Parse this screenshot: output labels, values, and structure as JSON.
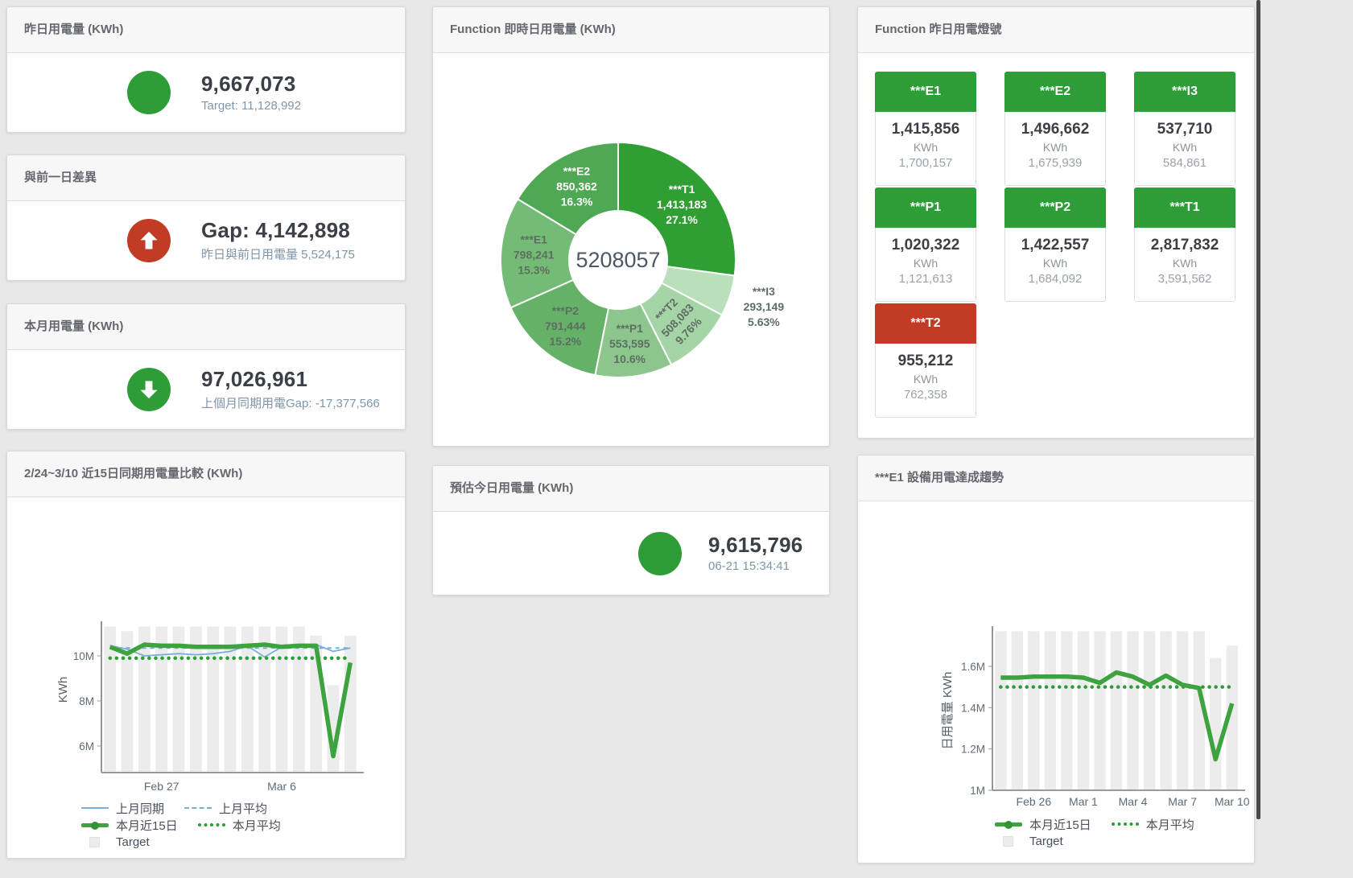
{
  "colors": {
    "green": "#2e9d38",
    "red": "#c13b25",
    "blue": "#7aadd8",
    "target_bar_gray": "#ececec",
    "value_text": "#3a4045",
    "subtitle_text": "#8095a8",
    "panel_title_text": "#64686e"
  },
  "panels": {
    "yesterday": {
      "title": "昨日用電量 (KWh)",
      "value": "9,667,073",
      "subtitle": "Target: 11,128,992",
      "status": "green"
    },
    "day_gap": {
      "title": "與前一日差異",
      "value": "Gap: 4,142,898",
      "subtitle": "昨日與前日用電量 5,524,175",
      "status": "red",
      "direction": "up"
    },
    "month": {
      "title": "本月用電量 (KWh)",
      "value": "97,026,961",
      "subtitle": "上個月同期用電Gap: -17,377,566",
      "status": "green",
      "direction": "down"
    },
    "donut": {
      "title": "Function 即時日用電量 (KWh)"
    },
    "estimate": {
      "title": "預估今日用電量 (KWh)",
      "value": "9,615,796",
      "subtitle": "06-21 15:34:41",
      "status": "green"
    },
    "lights": {
      "title": "Function 昨日用電燈號",
      "tiles": [
        {
          "name": "***E1",
          "value": "1,415,856",
          "unit": "KWh",
          "target": "1,700,157",
          "status": "green"
        },
        {
          "name": "***E2",
          "value": "1,496,662",
          "unit": "KWh",
          "target": "1,675,939",
          "status": "green"
        },
        {
          "name": "***I3",
          "value": "537,710",
          "unit": "KWh",
          "target": "584,861",
          "status": "green"
        },
        {
          "name": "***P1",
          "value": "1,020,322",
          "unit": "KWh",
          "target": "1,121,613",
          "status": "green"
        },
        {
          "name": "***P2",
          "value": "1,422,557",
          "unit": "KWh",
          "target": "1,684,092",
          "status": "green"
        },
        {
          "name": "***T1",
          "value": "2,817,832",
          "unit": "KWh",
          "target": "3,591,562",
          "status": "green"
        },
        {
          "name": "***T2",
          "value": "955,212",
          "unit": "KWh",
          "target": "762,358",
          "status": "red"
        }
      ]
    },
    "compare": {
      "title": "2/24~3/10 近15日同期用電量比較 (KWh)"
    },
    "trend": {
      "title": "***E1 設備用電達成趨勢"
    }
  },
  "chart_data": [
    {
      "id": "realtime-donut",
      "type": "pie",
      "title": "Function 即時日用電量 (KWh)",
      "center_label": "5208057",
      "unit": "KWh",
      "slices": [
        {
          "name": "***T1",
          "value": 1413183,
          "pct": "27.1%",
          "color": "#2f9e33",
          "text_color": "#ffffff"
        },
        {
          "name": "***I3",
          "value": 293149,
          "pct": "5.63%",
          "color": "#badfbb",
          "text_color": "#5e6e62",
          "outside": true
        },
        {
          "name": "***T2",
          "value": 508083,
          "pct": "9.76%",
          "color": "#a5d5a6",
          "text_color": "#5e6e62",
          "rotate": -46
        },
        {
          "name": "***P1",
          "value": 553595,
          "pct": "10.6%",
          "color": "#8cc68d",
          "text_color": "#5e6e62"
        },
        {
          "name": "***P2",
          "value": 791444,
          "pct": "15.2%",
          "color": "#66b168",
          "text_color": "#5e6e62"
        },
        {
          "name": "***E1",
          "value": 798241,
          "pct": "15.3%",
          "color": "#74bb76",
          "text_color": "#5e6e62"
        },
        {
          "name": "***E2",
          "value": 850362,
          "pct": "16.3%",
          "color": "#4fa854",
          "text_color": "#ffffff"
        }
      ]
    },
    {
      "id": "compare-15d",
      "type": "line+bar",
      "title": "2/24~3/10 近15日同期用電量比較 (KWh)",
      "ylabel": "KWh",
      "unit": "M = million KWh",
      "grid": false,
      "ylim": [
        4.82,
        11.32
      ],
      "yticks": [
        {
          "v": 6,
          "label": "6M"
        },
        {
          "v": 8,
          "label": "8M"
        },
        {
          "v": 10,
          "label": "10M"
        }
      ],
      "categories": [
        "Feb 24",
        "Feb 25",
        "Feb 26",
        "Feb 27",
        "Feb 28",
        "Mar 1",
        "Mar 2",
        "Mar 3",
        "Mar 4",
        "Mar 5",
        "Mar 6",
        "Mar 7",
        "Mar 8",
        "Mar 9",
        "Mar 10"
      ],
      "xticks": [
        {
          "i": 3,
          "label": "Feb 27"
        },
        {
          "i": 10,
          "label": "Mar 6"
        }
      ],
      "n": 15,
      "bars": {
        "name": "Target",
        "color": "#ececec",
        "values_M": [
          11.3,
          11.1,
          11.3,
          11.3,
          11.3,
          11.3,
          11.3,
          11.3,
          11.3,
          11.3,
          11.3,
          11.3,
          10.9,
          8.7,
          10.9
        ]
      },
      "series": [
        {
          "name": "上月同期",
          "color": "#7aadd8",
          "width": 1.8,
          "values_M": [
            10.45,
            10.3,
            10.0,
            10.05,
            10.1,
            10.05,
            10.1,
            10.2,
            10.45,
            9.95,
            10.4,
            10.5,
            10.5,
            10.2,
            10.35
          ]
        },
        {
          "name": "上月平均",
          "color": "#7aadd8",
          "width": 2,
          "dash": "5,5",
          "constant_M": 10.35
        },
        {
          "name": "本月平均",
          "color": "#2e9d38",
          "width": 4.5,
          "dash": "0.1,8",
          "cap": "round",
          "constant_M": 9.9
        },
        {
          "name": "本月近15日",
          "color": "#3da33f",
          "width": 5.5,
          "values_M": [
            10.4,
            10.1,
            10.5,
            10.45,
            10.45,
            10.4,
            10.4,
            10.4,
            10.45,
            10.5,
            10.4,
            10.45,
            10.45,
            5.55,
            9.7
          ]
        }
      ],
      "legend_rows": [
        [
          {
            "label": "上月同期",
            "swatch": "blue-line"
          },
          {
            "label": "上月平均",
            "swatch": "blue-dash"
          }
        ],
        [
          {
            "label": "本月近15日",
            "swatch": "green-thick"
          },
          {
            "label": "本月平均",
            "swatch": "green-dot"
          }
        ],
        [
          {
            "label": "Target",
            "swatch": "gray-square"
          }
        ]
      ]
    },
    {
      "id": "trend-e1",
      "type": "line+bar",
      "title": "***E1 設備用電達成趨勢",
      "ylabel": "日用電量 KWh",
      "unit": "M = million KWh",
      "grid": false,
      "ylim": [
        1.0,
        1.771
      ],
      "yticks": [
        {
          "v": 1,
          "label": "1M"
        },
        {
          "v": 1.2,
          "label": "1.2M"
        },
        {
          "v": 1.4,
          "label": "1.4M"
        },
        {
          "v": 1.6,
          "label": "1.6M"
        }
      ],
      "categories": [
        "Feb 24",
        "Feb 25",
        "Feb 26",
        "Feb 27",
        "Feb 28",
        "Mar 1",
        "Mar 2",
        "Mar 3",
        "Mar 4",
        "Mar 5",
        "Mar 6",
        "Mar 7",
        "Mar 8",
        "Mar 9",
        "Mar 10"
      ],
      "xticks": [
        {
          "i": 2,
          "label": "Feb 26"
        },
        {
          "i": 5,
          "label": "Mar 1"
        },
        {
          "i": 8,
          "label": "Mar 4"
        },
        {
          "i": 11,
          "label": "Mar 7"
        },
        {
          "i": 14,
          "label": "Mar 10"
        }
      ],
      "n": 15,
      "bars": {
        "name": "Target",
        "color": "#ececec",
        "values_M": [
          1.77,
          1.77,
          1.77,
          1.77,
          1.77,
          1.77,
          1.77,
          1.77,
          1.77,
          1.77,
          1.77,
          1.77,
          1.77,
          1.64,
          1.7
        ]
      },
      "series": [
        {
          "name": "本月平均",
          "color": "#2e9d38",
          "width": 4.5,
          "dash": "0.1,8",
          "cap": "round",
          "constant_M": 1.5
        },
        {
          "name": "本月近15日",
          "color": "#3da33f",
          "width": 5.5,
          "values_M": [
            1.545,
            1.545,
            1.55,
            1.55,
            1.55,
            1.545,
            1.52,
            1.57,
            1.55,
            1.51,
            1.555,
            1.51,
            1.495,
            1.15,
            1.42
          ]
        }
      ],
      "legend_rows": [
        [
          {
            "label": "本月近15日",
            "swatch": "green-thick"
          },
          {
            "label": "本月平均",
            "swatch": "green-dot"
          }
        ],
        [
          {
            "label": "Target",
            "swatch": "gray-square"
          }
        ]
      ]
    }
  ]
}
